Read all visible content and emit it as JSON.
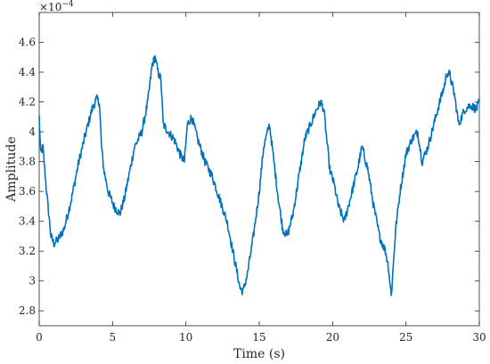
{
  "chart_data": {
    "type": "line",
    "xlabel": "Time (s)",
    "ylabel": "Amplitude",
    "xlim": [
      0,
      30
    ],
    "ylim": [
      2.7,
      4.8
    ],
    "x_ticks": [
      "0",
      "5",
      "10",
      "15",
      "20",
      "25",
      "30"
    ],
    "y_ticks": [
      "2.8",
      "3",
      "3.2",
      "3.4",
      "3.6",
      "3.8",
      "4",
      "4.2",
      "4.4",
      "4.6"
    ],
    "y_exponent": {
      "base": "×10",
      "power": "−4"
    },
    "grid": false,
    "line_color": "#0072BD",
    "series": [
      {
        "x": [
          0,
          0.1,
          0.25,
          0.5,
          0.8,
          1.0,
          1.3,
          1.7,
          2.2,
          2.7,
          3.2,
          3.6,
          3.9,
          4.1,
          4.25,
          4.4,
          4.7,
          5.1,
          5.5,
          5.8,
          6.1,
          6.5,
          7.0,
          7.4,
          7.7,
          7.9,
          8.1,
          8.3,
          8.45,
          8.8,
          9.2,
          9.6,
          9.9,
          10.1,
          10.4,
          10.8,
          11.3,
          11.8,
          12.3,
          12.8,
          13.3,
          13.7,
          13.9,
          14.2,
          14.6,
          15.0,
          15.3,
          15.7,
          16.0,
          16.3,
          16.6,
          16.9,
          17.3,
          17.7,
          18.1,
          18.5,
          18.9,
          19.2,
          19.4,
          19.6,
          19.8,
          20.1,
          20.4,
          20.8,
          21.2,
          21.7,
          22.0,
          22.4,
          22.8,
          23.2,
          23.6,
          23.8,
          24.0,
          24.3,
          24.6,
          25.0,
          25.4,
          25.8,
          26.1,
          26.5,
          26.9,
          27.3,
          27.6,
          27.8,
          28.0,
          28.3,
          28.6,
          29.0,
          29.4,
          29.8,
          30.0
        ],
        "y": [
          4.1,
          3.85,
          3.9,
          3.6,
          3.3,
          3.25,
          3.28,
          3.35,
          3.55,
          3.8,
          4.0,
          4.15,
          4.22,
          4.2,
          3.9,
          3.75,
          3.6,
          3.5,
          3.45,
          3.55,
          3.7,
          3.9,
          4.0,
          4.2,
          4.45,
          4.5,
          4.4,
          4.35,
          4.05,
          4.0,
          3.95,
          3.85,
          3.8,
          4.05,
          4.1,
          3.95,
          3.8,
          3.7,
          3.55,
          3.4,
          3.15,
          2.95,
          2.93,
          3.05,
          3.3,
          3.6,
          3.9,
          4.05,
          3.8,
          3.55,
          3.35,
          3.3,
          3.45,
          3.7,
          3.95,
          4.05,
          4.15,
          4.2,
          4.15,
          3.95,
          3.75,
          3.65,
          3.5,
          3.4,
          3.55,
          3.75,
          3.9,
          3.75,
          3.5,
          3.3,
          3.2,
          3.1,
          2.9,
          3.35,
          3.6,
          3.85,
          3.95,
          4.0,
          3.8,
          3.9,
          4.05,
          4.2,
          4.3,
          4.4,
          4.38,
          4.25,
          4.05,
          4.15,
          4.18,
          4.15,
          4.2
        ]
      }
    ]
  }
}
